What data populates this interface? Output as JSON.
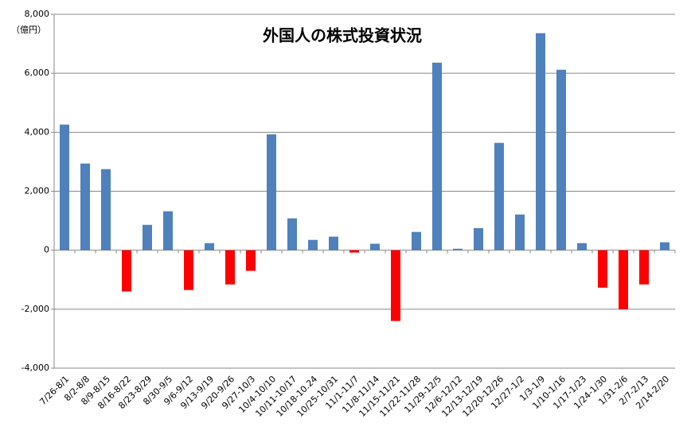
{
  "chart_data": {
    "type": "bar",
    "title": "外国人の株式投資状況",
    "y_unit_label": "（億円）",
    "categories": [
      "7/26-8/1",
      "8/2-8/8",
      "8/9-8/15",
      "8/16-8/22",
      "8/23-8/29",
      "8/30-9/5",
      "9/6-9/12",
      "9/13-9/19",
      "9/20-9/26",
      "9/27-10/3",
      "10/4-10/10",
      "10/11-10/17",
      "10/18-10.24",
      "10/25-10/31",
      "11/1-11/7",
      "11/8-11/14",
      "11/15-11/21",
      "11/22-11/28",
      "11/29-12/5",
      "12/6-12/12",
      "12/13-12/19",
      "12/20-12/26",
      "12/27-1/2",
      "1/3-1/9",
      "1/10-1/16",
      "1/17-1/23",
      "1/24-1/30",
      "1/31-2/6",
      "2/7-2/13",
      "2/14-2/20"
    ],
    "values": [
      4260,
      2940,
      2750,
      -1400,
      860,
      1320,
      -1350,
      240,
      -1160,
      -700,
      3930,
      1080,
      350,
      460,
      -80,
      220,
      -2400,
      620,
      6360,
      50,
      750,
      3640,
      1210,
      7360,
      6120,
      240,
      -1270,
      -2000,
      -1160,
      270
    ],
    "color": "#4f81bd",
    "negative_color": "#ff0000",
    "ylim": [
      -4000,
      8000
    ],
    "yticks": [
      {
        "value": -4000,
        "label": "-4,000"
      },
      {
        "value": -2000,
        "label": "-2,000"
      },
      0,
      {
        "value": 2000,
        "label": "2,000"
      },
      {
        "value": 4000,
        "label": "4,000"
      },
      {
        "value": 6000,
        "label": "6,000"
      },
      {
        "value": 8000,
        "label": "8,000"
      }
    ],
    "grid": true
  }
}
